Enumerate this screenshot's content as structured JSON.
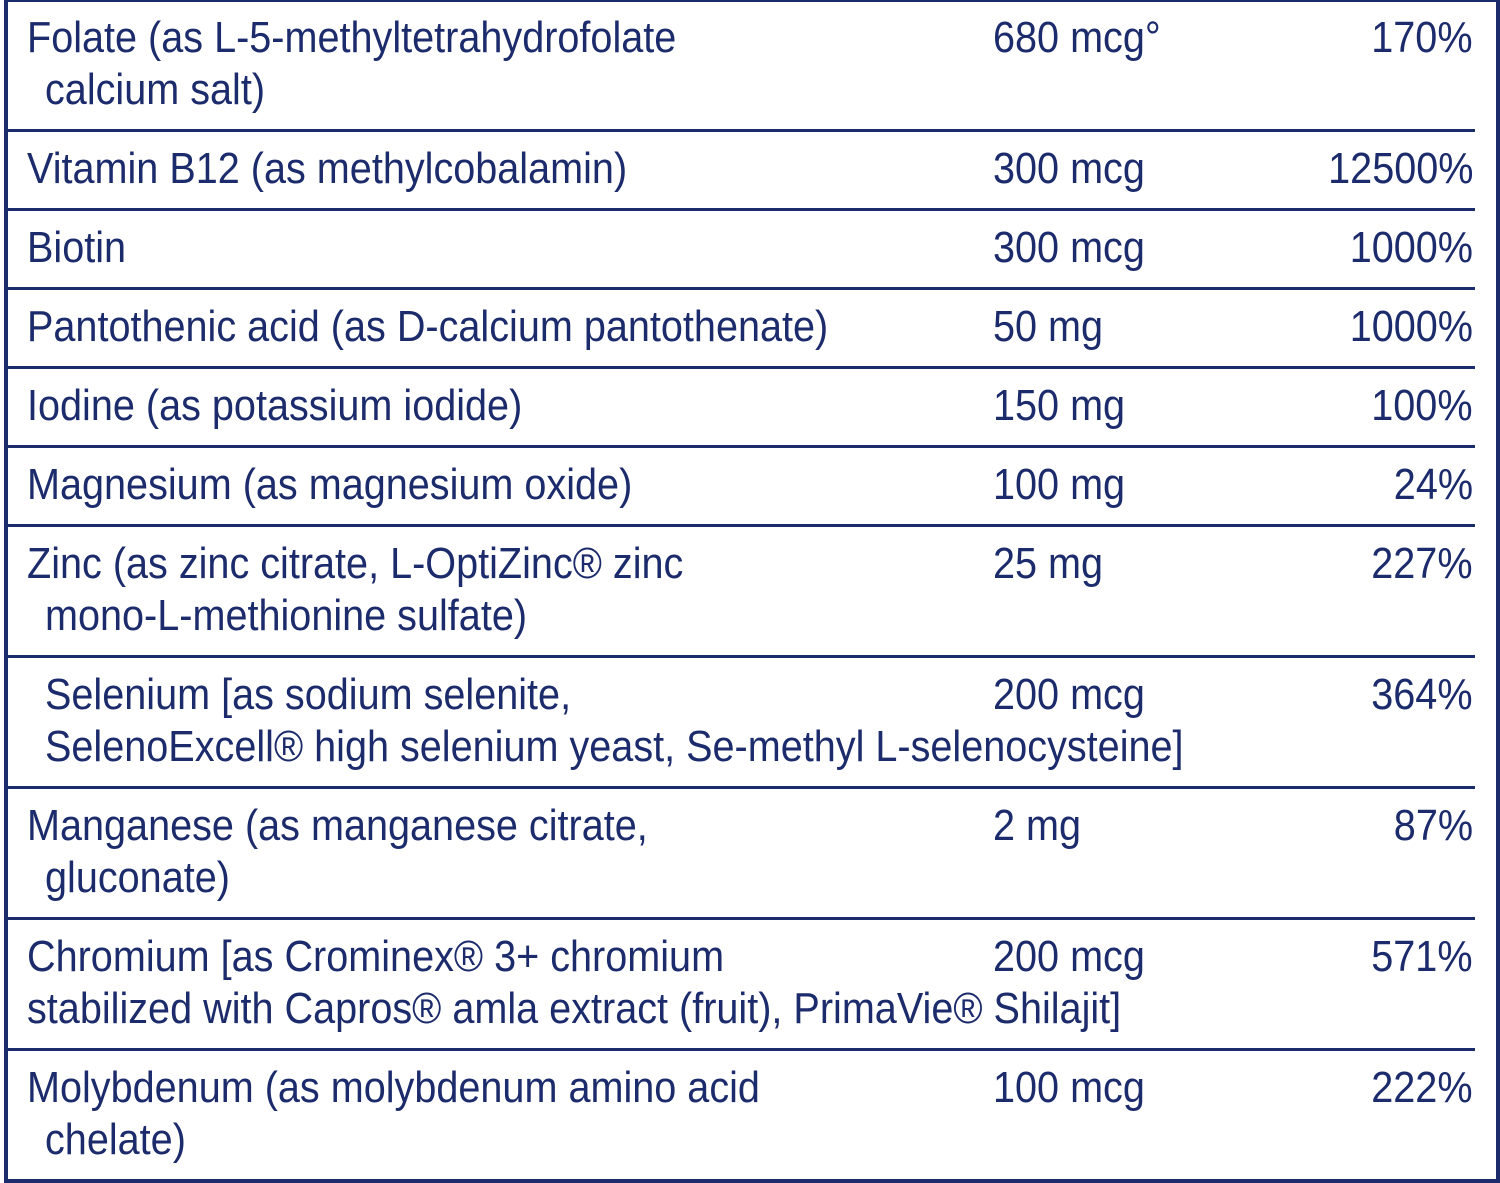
{
  "table": {
    "rows": [
      {
        "name_lines": [
          "Folate (as L-5-methyltetrahydrofolate",
          "calcium salt)"
        ],
        "amount": "680 mcg°",
        "dv": "170%"
      },
      {
        "name_lines": [
          "Vitamin B12 (as methylcobalamin)"
        ],
        "amount": "300 mcg",
        "dv": "12500%"
      },
      {
        "name_lines": [
          "Biotin"
        ],
        "amount": "300 mcg",
        "dv": "1000%"
      },
      {
        "name_lines": [
          "Pantothenic acid (as D-calcium pantothenate)"
        ],
        "amount": "50 mg",
        "dv": "1000%"
      },
      {
        "name_lines": [
          "Iodine (as potassium iodide)"
        ],
        "amount": "150 mg",
        "dv": "100%"
      },
      {
        "name_lines": [
          "Magnesium (as magnesium oxide)"
        ],
        "amount": "100 mg",
        "dv": "24%"
      },
      {
        "name_lines": [
          "Zinc (as zinc citrate, L-OptiZinc® zinc",
          "mono-L-methionine sulfate)"
        ],
        "amount": "25 mg",
        "dv": "227%"
      },
      {
        "name_lines": [
          "Selenium [as sodium selenite,",
          "SelenoExcell® high selenium yeast, Se-methyl L-selenocysteine]"
        ],
        "amount": "200 mcg",
        "dv": "364%"
      },
      {
        "name_lines": [
          "Manganese (as manganese citrate,",
          "gluconate)"
        ],
        "amount": "2 mg",
        "dv": "87%"
      },
      {
        "name_lines": [
          "Chromium [as Crominex® 3+ chromium",
          "stabilized with Capros® amla extract (fruit), PrimaVie® Shilajit]"
        ],
        "amount": "200 mcg",
        "dv": "571%"
      },
      {
        "name_lines": [
          "Molybdenum (as molybdenum amino acid",
          "chelate)"
        ],
        "amount": "100 mcg",
        "dv": "222%"
      }
    ]
  }
}
